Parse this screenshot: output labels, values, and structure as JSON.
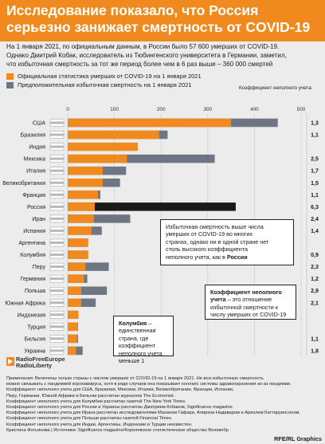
{
  "header": {
    "title_line1": "Исследование показало, что Россия",
    "title_line2": "серьезно занижает смертность от COVID-19"
  },
  "intro": [
    "На 1 января  2021, по официальным данным, в России было 57 600 умерших от COVID-19.",
    "Однако Дмитрий Кобак, исследователь из Тюбингенского университета в Германии, заметил,",
    "что избыточная смертность за тот же период более чем в 6 раз выше – 360 000 смертей"
  ],
  "legend": {
    "official": "Официальная статистика умерших от COVID-19 на 1 января 2021",
    "excess": "Предположительная избыточная смертность на 1 января 2021"
  },
  "ratio_header": "Коэффициент неполного учета",
  "colors": {
    "header": "#f08a1f",
    "official": "#f08a1f",
    "excess": "#6e7683",
    "russia_excess": "#1a1a1a",
    "background": "#ececec"
  },
  "chart_data": {
    "type": "bar",
    "orientation": "horizontal",
    "unit": "тысяч",
    "xlim": [
      0,
      500
    ],
    "x_ticks": [
      "0",
      "100",
      "200",
      "300",
      "400",
      "500"
    ],
    "categories": [
      "США",
      "Бразилия",
      "Индия",
      "Мексика",
      "Италия",
      "Великобритания",
      "Франция",
      "Россия",
      "Иран",
      "Испания",
      "Аргентина",
      "Колумбия",
      "Перу",
      "Германия",
      "Польша",
      "Южная Африка",
      "Индонезия",
      "Турция",
      "Бельгия",
      "Украина"
    ],
    "flags": [
      "us-flag-icon",
      "br-flag-icon",
      "in-flag-icon",
      "mx-flag-icon",
      "it-flag-icon",
      "gb-flag-icon",
      "fr-flag-icon",
      "ru-flag-icon",
      "ir-flag-icon",
      "es-flag-icon",
      "ar-flag-icon",
      "co-flag-icon",
      "pe-flag-icon",
      "de-flag-icon",
      "pl-flag-icon",
      "za-flag-icon",
      "id-flag-icon",
      "tr-flag-icon",
      "be-flag-icon",
      "ua-flag-icon"
    ],
    "series": [
      {
        "name": "Официальная статистика умерших от COVID-19 на 1 января 2021",
        "values": [
          350,
          196,
          150,
          127,
          75,
          75,
          65,
          58,
          56,
          51,
          44,
          44,
          38,
          35,
          29,
          29,
          23,
          21,
          20,
          18
        ]
      },
      {
        "name": "Предположительная избыточная смертность на 1 января 2021",
        "values": [
          450,
          214,
          0,
          315,
          125,
          112,
          70,
          360,
          134,
          73,
          40,
          40,
          88,
          42,
          84,
          60,
          0,
          22,
          22,
          32
        ]
      }
    ],
    "ratio": [
      "1,3",
      "1,1",
      "",
      "2,5",
      "1,7",
      "1,5",
      "1,1",
      "6,3",
      "2,4",
      "1,4",
      "",
      "0,9",
      "2,3",
      "1,2",
      "2,9",
      "2,1",
      "",
      "",
      "1,1",
      "1,8"
    ],
    "highlight": "Россия"
  },
  "callouts": {
    "russia": {
      "lines": [
        "Избыточная смертность выше числа",
        "умерших от COVID-19 во многих",
        "странах, однако ни в одной стране нет",
        "столь высокого коэффициента"
      ],
      "last_plain": "неполного учета, как в",
      "last_bold": "России"
    },
    "coefficient": {
      "bold": "Коэффициент неполного учета",
      "rest": "– это отношение избыточной смертности к числу умерших от COVID-19"
    },
    "colombia": {
      "bold": "Колумбия",
      "rest": "– единственная страна, где коэффициент неполного учета меньше 1"
    }
  },
  "logo": {
    "line1": "RadioFreeEurope",
    "line2": "RadioLiberty"
  },
  "notes": [
    "Примечания: Включены только страны с числом умерших от COVID-19 на 1 января 2021. Не всю избыточную смертность",
    "можно связывать с пандемией коронавируса, хотя в ряде случаев она показывает коллапс системы здравоохранения из-за пандемии.",
    "Коэффициент неполного учета для США, Бразилии, Мексики, Италии, Великобритании, Франции, Испании,",
    "Перу, Германии, Южной Африки и Бельгии рассчитан журналом The Economist.",
    "Коэффициент неполного учета для Колумбии рассчитан газетой The New York Times.",
    "Коэффициент неполного учета для России и Украины рассчитан Дмитрием Кобаком, Significance magazine.",
    "Коэффициент неполного учета для Ирана рассчитан исследователями Маханом Гафари, Алиреза Надиваром и Ариэлем Каттаруинсоном.",
    "Коэффициент неполного учета для Польши рассчитан газетой Financial Times.",
    "Коэффициент неполного учета для Индии, Аргентины, Индонезии и Турции неизвестен.",
    "Кристина Фотьянова | Источники: Significance magazine/Королевское статистическое общество Великобр"
  ],
  "credit": "RFE/RL Graphics"
}
